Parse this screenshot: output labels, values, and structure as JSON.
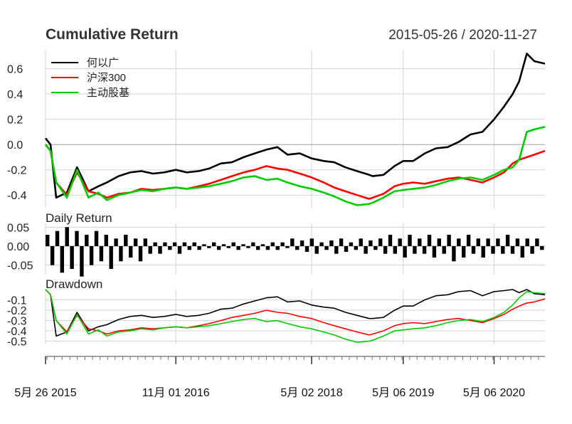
{
  "header": {
    "title": "Cumulative Return",
    "date_range": "2015-05-26 / 2020-11-27"
  },
  "panels": {
    "daily_title": "Daily Return",
    "drawdown_title": "Drawdown"
  },
  "colors": {
    "fund": "#000000",
    "hs300": "#ff0000",
    "active": "#00cc00",
    "grid": "#d3d3d3"
  },
  "chart_data": [
    {
      "type": "line",
      "title": "Cumulative Return",
      "ylim": [
        -0.5,
        0.75
      ],
      "yticks": [
        "0.6",
        "0.4",
        "0.2",
        "0.0",
        "-0.2",
        "-0.4"
      ],
      "ytick_values": [
        0.6,
        0.4,
        0.2,
        0.0,
        -0.2,
        -0.4
      ],
      "grid": true,
      "legend": "top-left",
      "x": [
        "2015-05-26",
        "2015-06-15",
        "2015-07-08",
        "2015-08-20",
        "2015-09-30",
        "2015-11-15",
        "2015-12-25",
        "2016-01-28",
        "2016-03-15",
        "2016-05-01",
        "2016-06-15",
        "2016-08-01",
        "2016-09-15",
        "2016-11-01",
        "2016-12-15",
        "2017-02-01",
        "2017-03-15",
        "2017-05-01",
        "2017-06-15",
        "2017-08-01",
        "2017-09-15",
        "2017-11-01",
        "2017-12-15",
        "2018-01-25",
        "2018-03-15",
        "2018-05-02",
        "2018-06-20",
        "2018-08-01",
        "2018-09-15",
        "2018-11-01",
        "2018-12-20",
        "2019-01-03",
        "2019-02-15",
        "2019-04-01",
        "2019-05-06",
        "2019-06-15",
        "2019-08-01",
        "2019-09-15",
        "2019-11-01",
        "2019-12-15",
        "2020-02-01",
        "2020-03-20",
        "2020-05-06",
        "2020-06-15",
        "2020-07-20",
        "2020-08-15",
        "2020-09-15",
        "2020-10-15",
        "2020-11-27"
      ],
      "series": [
        {
          "name": "何以广",
          "values": [
            0.05,
            0.0,
            -0.42,
            -0.38,
            -0.18,
            -0.37,
            -0.33,
            -0.3,
            -0.25,
            -0.22,
            -0.21,
            -0.23,
            -0.22,
            -0.2,
            -0.22,
            -0.21,
            -0.19,
            -0.15,
            -0.14,
            -0.1,
            -0.07,
            -0.04,
            -0.02,
            -0.08,
            -0.07,
            -0.11,
            -0.13,
            -0.14,
            -0.18,
            -0.21,
            -0.24,
            -0.25,
            -0.24,
            -0.17,
            -0.13,
            -0.13,
            -0.07,
            -0.03,
            -0.02,
            0.02,
            0.08,
            0.1,
            0.2,
            0.3,
            0.4,
            0.5,
            0.72,
            0.66,
            0.64
          ]
        },
        {
          "name": "沪深300",
          "values": [
            0.0,
            -0.05,
            -0.3,
            -0.4,
            -0.22,
            -0.37,
            -0.39,
            -0.42,
            -0.39,
            -0.38,
            -0.35,
            -0.36,
            -0.35,
            -0.34,
            -0.35,
            -0.33,
            -0.31,
            -0.28,
            -0.25,
            -0.22,
            -0.2,
            -0.17,
            -0.19,
            -0.2,
            -0.23,
            -0.26,
            -0.3,
            -0.34,
            -0.37,
            -0.4,
            -0.43,
            -0.42,
            -0.39,
            -0.33,
            -0.31,
            -0.3,
            -0.31,
            -0.29,
            -0.27,
            -0.26,
            -0.28,
            -0.3,
            -0.26,
            -0.22,
            -0.15,
            -0.12,
            -0.1,
            -0.08,
            -0.05
          ]
        },
        {
          "name": "主动股基",
          "values": [
            0.0,
            -0.05,
            -0.3,
            -0.42,
            -0.2,
            -0.42,
            -0.38,
            -0.44,
            -0.4,
            -0.38,
            -0.36,
            -0.37,
            -0.35,
            -0.34,
            -0.35,
            -0.34,
            -0.33,
            -0.31,
            -0.29,
            -0.26,
            -0.25,
            -0.28,
            -0.27,
            -0.3,
            -0.33,
            -0.35,
            -0.38,
            -0.41,
            -0.45,
            -0.48,
            -0.47,
            -0.46,
            -0.42,
            -0.37,
            -0.36,
            -0.35,
            -0.34,
            -0.32,
            -0.29,
            -0.27,
            -0.26,
            -0.28,
            -0.24,
            -0.2,
            -0.18,
            -0.12,
            0.1,
            0.12,
            0.14
          ]
        }
      ]
    },
    {
      "type": "bar",
      "title": "Daily Return",
      "ylim": [
        -0.075,
        0.06
      ],
      "yticks": [
        "0.05",
        "0.00",
        "-0.05"
      ],
      "ytick_values": [
        0.05,
        0.0,
        -0.05
      ],
      "grid": true,
      "series": [
        {
          "name": "何以广",
          "values": [
            0.03,
            -0.05,
            0.04,
            -0.07,
            0.05,
            -0.06,
            0.04,
            -0.08,
            0.03,
            -0.05,
            0.04,
            -0.04,
            0.03,
            -0.06,
            0.02,
            -0.04,
            0.03,
            -0.03,
            0.02,
            -0.04,
            0.02,
            -0.02,
            0.01,
            -0.02,
            0.01,
            -0.01,
            0.01,
            -0.02,
            0.01,
            -0.01,
            0.01,
            -0.01,
            0.005,
            -0.005,
            0.01,
            -0.01,
            0.005,
            -0.005,
            0.01,
            -0.01,
            0.005,
            -0.005,
            0.01,
            -0.01,
            0.005,
            -0.01,
            0.01,
            -0.01,
            0.01,
            -0.005,
            0.02,
            -0.01,
            0.015,
            -0.015,
            0.02,
            -0.02,
            0.01,
            -0.01,
            0.015,
            -0.02,
            0.02,
            -0.015,
            0.01,
            -0.01,
            0.02,
            -0.02,
            0.015,
            -0.01,
            0.02,
            -0.02,
            0.03,
            -0.02,
            0.02,
            -0.03,
            0.03,
            -0.02,
            0.02,
            -0.02,
            0.03,
            -0.03,
            0.02,
            -0.02,
            0.03,
            -0.04,
            0.02,
            -0.03,
            0.03,
            -0.02,
            0.02,
            -0.03,
            0.02,
            -0.02,
            0.02,
            -0.02,
            0.03,
            -0.02,
            0.02,
            -0.03,
            0.02,
            -0.02,
            0.02,
            -0.01
          ]
        }
      ]
    },
    {
      "type": "line",
      "title": "Drawdown",
      "ylim": [
        -0.53,
        0.0
      ],
      "yticks": [
        "-0.1",
        "-0.2",
        "-0.3",
        "-0.4",
        "-0.5"
      ],
      "ytick_values": [
        -0.1,
        -0.2,
        -0.3,
        -0.4,
        -0.5
      ],
      "grid": true,
      "x": [
        "2015-05-26",
        "2015-06-15",
        "2015-07-08",
        "2015-08-20",
        "2015-09-30",
        "2015-11-15",
        "2015-12-25",
        "2016-01-28",
        "2016-03-15",
        "2016-05-01",
        "2016-06-15",
        "2016-08-01",
        "2016-09-15",
        "2016-11-01",
        "2016-12-15",
        "2017-02-01",
        "2017-03-15",
        "2017-05-01",
        "2017-06-15",
        "2017-08-01",
        "2017-09-15",
        "2017-11-01",
        "2017-12-15",
        "2018-01-25",
        "2018-03-15",
        "2018-05-02",
        "2018-06-20",
        "2018-08-01",
        "2018-09-15",
        "2018-11-01",
        "2018-12-20",
        "2019-01-03",
        "2019-02-15",
        "2019-04-01",
        "2019-05-06",
        "2019-06-15",
        "2019-08-01",
        "2019-09-15",
        "2019-11-01",
        "2019-12-15",
        "2020-02-01",
        "2020-03-20",
        "2020-05-06",
        "2020-06-15",
        "2020-07-20",
        "2020-08-15",
        "2020-09-15",
        "2020-10-15",
        "2020-11-27"
      ],
      "series": [
        {
          "name": "何以广",
          "values": [
            0.0,
            -0.05,
            -0.45,
            -0.41,
            -0.22,
            -0.4,
            -0.36,
            -0.34,
            -0.29,
            -0.26,
            -0.25,
            -0.27,
            -0.26,
            -0.24,
            -0.26,
            -0.25,
            -0.23,
            -0.19,
            -0.18,
            -0.14,
            -0.11,
            -0.08,
            -0.07,
            -0.12,
            -0.11,
            -0.15,
            -0.17,
            -0.18,
            -0.22,
            -0.25,
            -0.28,
            -0.28,
            -0.27,
            -0.2,
            -0.16,
            -0.16,
            -0.1,
            -0.06,
            -0.05,
            -0.02,
            -0.01,
            -0.06,
            -0.02,
            -0.01,
            0.0,
            -0.03,
            0.0,
            -0.04,
            -0.05
          ]
        },
        {
          "name": "沪深300",
          "values": [
            0.0,
            -0.05,
            -0.3,
            -0.41,
            -0.25,
            -0.38,
            -0.4,
            -0.43,
            -0.4,
            -0.39,
            -0.37,
            -0.38,
            -0.37,
            -0.36,
            -0.37,
            -0.35,
            -0.33,
            -0.3,
            -0.27,
            -0.25,
            -0.23,
            -0.2,
            -0.22,
            -0.23,
            -0.26,
            -0.28,
            -0.32,
            -0.35,
            -0.38,
            -0.41,
            -0.44,
            -0.43,
            -0.4,
            -0.35,
            -0.33,
            -0.32,
            -0.33,
            -0.31,
            -0.29,
            -0.28,
            -0.3,
            -0.32,
            -0.28,
            -0.24,
            -0.19,
            -0.16,
            -0.13,
            -0.12,
            -0.09
          ]
        },
        {
          "name": "主动股基",
          "values": [
            0.0,
            -0.05,
            -0.3,
            -0.43,
            -0.24,
            -0.43,
            -0.39,
            -0.45,
            -0.41,
            -0.4,
            -0.38,
            -0.39,
            -0.37,
            -0.36,
            -0.37,
            -0.36,
            -0.35,
            -0.33,
            -0.31,
            -0.29,
            -0.28,
            -0.31,
            -0.3,
            -0.33,
            -0.36,
            -0.38,
            -0.41,
            -0.44,
            -0.48,
            -0.51,
            -0.5,
            -0.49,
            -0.45,
            -0.4,
            -0.39,
            -0.38,
            -0.37,
            -0.35,
            -0.32,
            -0.3,
            -0.29,
            -0.31,
            -0.27,
            -0.22,
            -0.15,
            -0.08,
            -0.02,
            -0.03,
            -0.04
          ]
        }
      ]
    }
  ],
  "x_axis": {
    "tick_labels": [
      "5月 26 2015",
      "11月 01 2016",
      "5月 02 2018",
      "5月 06 2019",
      "5月 06 2020"
    ],
    "tick_dates": [
      "2015-05-26",
      "2016-11-01",
      "2018-05-02",
      "2019-05-06",
      "2020-05-06"
    ],
    "range": [
      "2015-05-26",
      "2020-11-27"
    ]
  }
}
